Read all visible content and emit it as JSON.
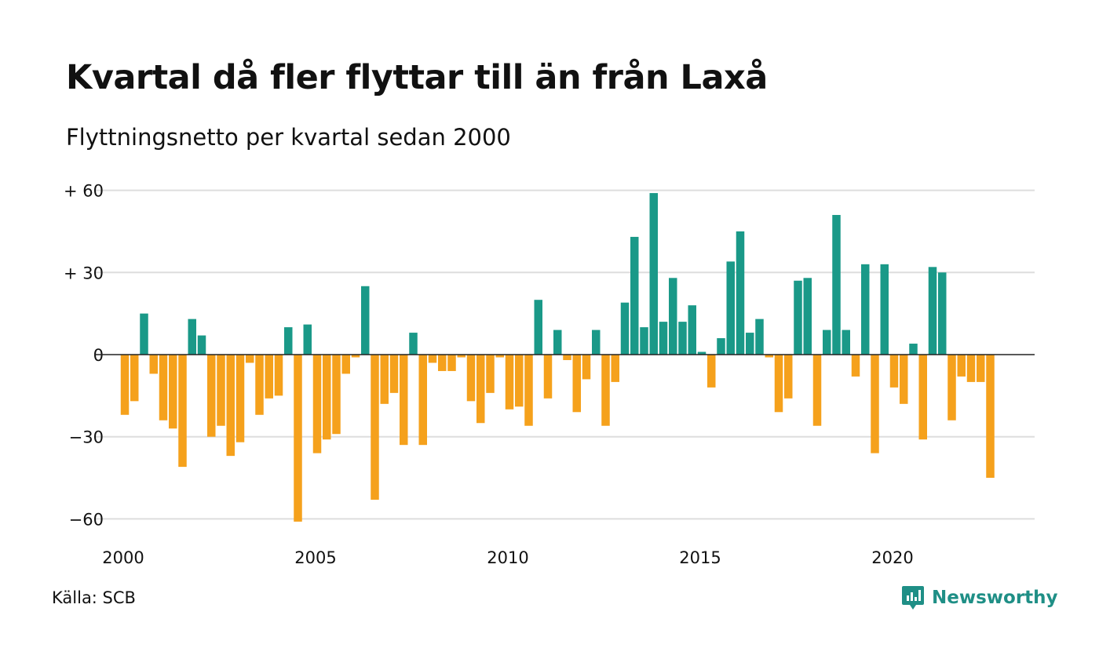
{
  "title": "Kvartal då fler flyttar till än från Laxå",
  "subtitle": "Flyttningsnetto per kvartal sedan 2000",
  "source": "Källa: SCB",
  "brand": "Newsworthy",
  "colors": {
    "positive": "#1a9988",
    "negative": "#f5a11c",
    "grid": "#dddddd",
    "zero": "#222222",
    "brand": "#1f8f86"
  },
  "chart_data": {
    "type": "bar",
    "title": "Kvartal då fler flyttar till än från Laxå",
    "subtitle": "Flyttningsnetto per kvartal sedan 2000",
    "xlabel": "",
    "ylabel": "",
    "ylim": [
      -62,
      62
    ],
    "yticks": [
      60,
      30,
      0,
      -30,
      -60
    ],
    "ytick_labels": [
      "+ 60",
      "+ 30",
      "0",
      "−30",
      "−60"
    ],
    "xticks": [
      "2000",
      "2005",
      "2010",
      "2015",
      "2020"
    ],
    "x_start_year": 2000,
    "grid": true,
    "legend": "none",
    "values": [
      -22,
      -17,
      15,
      -7,
      -24,
      -27,
      -41,
      13,
      7,
      -30,
      -26,
      -37,
      -32,
      -3,
      -22,
      -16,
      -15,
      10,
      -61,
      11,
      -36,
      -31,
      -29,
      -7,
      -1,
      25,
      -53,
      -18,
      -14,
      -33,
      8,
      -33,
      -3,
      -6,
      -6,
      -1,
      -17,
      -25,
      -14,
      -1,
      -20,
      -19,
      -26,
      20,
      -16,
      9,
      -2,
      -21,
      -9,
      9,
      -26,
      -10,
      19,
      43,
      10,
      59,
      12,
      28,
      12,
      18,
      1,
      -12,
      6,
      34,
      45,
      8,
      13,
      -1,
      -21,
      -16,
      27,
      28,
      -26,
      9,
      51,
      9,
      -8,
      33,
      -36,
      33,
      -12,
      -18,
      4,
      -31,
      32,
      30,
      -24,
      -8,
      -10,
      -10,
      -45
    ]
  }
}
